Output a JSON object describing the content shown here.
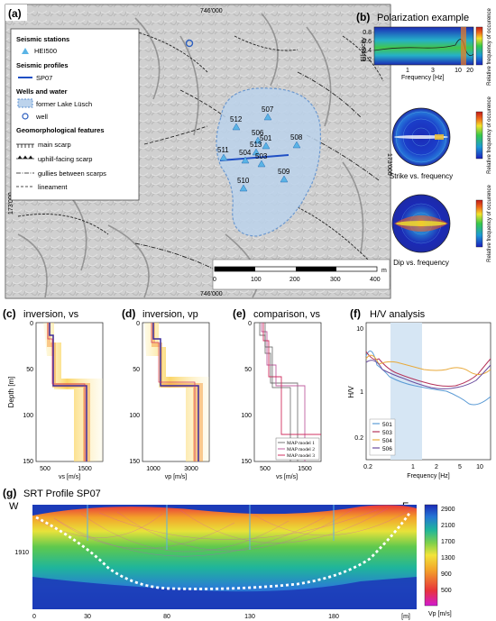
{
  "panels": {
    "a": {
      "letter": "(a)"
    },
    "b": {
      "letter": "(b)",
      "title": "Polarization example"
    },
    "c": {
      "letter": "(c)",
      "title": "inversion, vs"
    },
    "d": {
      "letter": "(d)",
      "title": "inversion, vp"
    },
    "e": {
      "letter": "(e)",
      "title": "comparison, vs"
    },
    "f": {
      "letter": "(f)",
      "title": "H/V analysis"
    },
    "g": {
      "letter": "(g)",
      "title": "SRT Profile SP07"
    }
  },
  "map": {
    "coords": {
      "top": "746'000",
      "bottom": "746'000",
      "left": "173'000",
      "right": "173'000"
    },
    "legend": {
      "seismic_stations": "Seismic stations",
      "station_label": "HEI500",
      "seismic_profiles": "Seismic profiles",
      "profile_label": "SP07",
      "wells_water": "Wells and water",
      "lake_label": "former Lake Lüsch",
      "well_label": "well",
      "geomorph": "Geomorphological features",
      "main_scarp": "main scarp",
      "uphill_scarp": "uphill-facing scarp",
      "gullies": "gullies between scarps",
      "lineament": "lineament"
    },
    "stations": [
      "512",
      "507",
      "506",
      "501",
      "513",
      "508",
      "511",
      "504",
      "503",
      "509",
      "510"
    ],
    "scalebar": {
      "ticks": [
        "0",
        "100",
        "200",
        "300",
        "400"
      ],
      "unit": "m"
    }
  },
  "polarization": {
    "ylabel": "Ellipticity",
    "yticks": [
      "0.8",
      "0.6",
      "0.4",
      "0.2"
    ],
    "xlabel": "Frequency [Hz]",
    "xticks": [
      "1",
      "3",
      "10",
      "20"
    ],
    "colorbar_label": "Relative frequency of occurence",
    "strike_caption": "Strike vs. frequency",
    "dip_caption": "Dip vs. frequency"
  },
  "vs_plot": {
    "ylabel": "Depth [m]",
    "yticks": [
      "0",
      "50",
      "100",
      "150"
    ],
    "xlabel": "vs [m/s]",
    "xticks": [
      "500",
      "1500"
    ]
  },
  "vp_plot": {
    "yticks": [
      "0",
      "50",
      "100",
      "150"
    ],
    "xlabel": "vp [m/s]",
    "xticks": [
      "1000",
      "3000"
    ]
  },
  "comparison": {
    "yticks": [
      "0",
      "50",
      "100",
      "150"
    ],
    "xlabel": "vs [m/s]",
    "xticks": [
      "500",
      "1500"
    ],
    "legend": [
      "MAP model 1",
      "MAP model 2",
      "MAP model 3"
    ]
  },
  "hv": {
    "ylabel": "H/V",
    "yticks": [
      "10",
      "1",
      "0.2"
    ],
    "xlabel": "Frequency [Hz]",
    "xticks": [
      "0.2",
      "1",
      "2",
      "5",
      "10"
    ],
    "legend": [
      "501",
      "503",
      "504",
      "506"
    ],
    "colors": [
      "#5b9bd5",
      "#b5345b",
      "#e8a93a",
      "#6b4e9e"
    ]
  },
  "srt": {
    "west": "W",
    "east": "E",
    "ytick": "1910",
    "xticks": [
      "0",
      "30",
      "80",
      "130",
      "180",
      "[m]"
    ],
    "colorbar_ticks": [
      "2900",
      "2100",
      "1700",
      "1300",
      "900",
      "500"
    ],
    "colorbar_label": "Vp [m/s]"
  }
}
